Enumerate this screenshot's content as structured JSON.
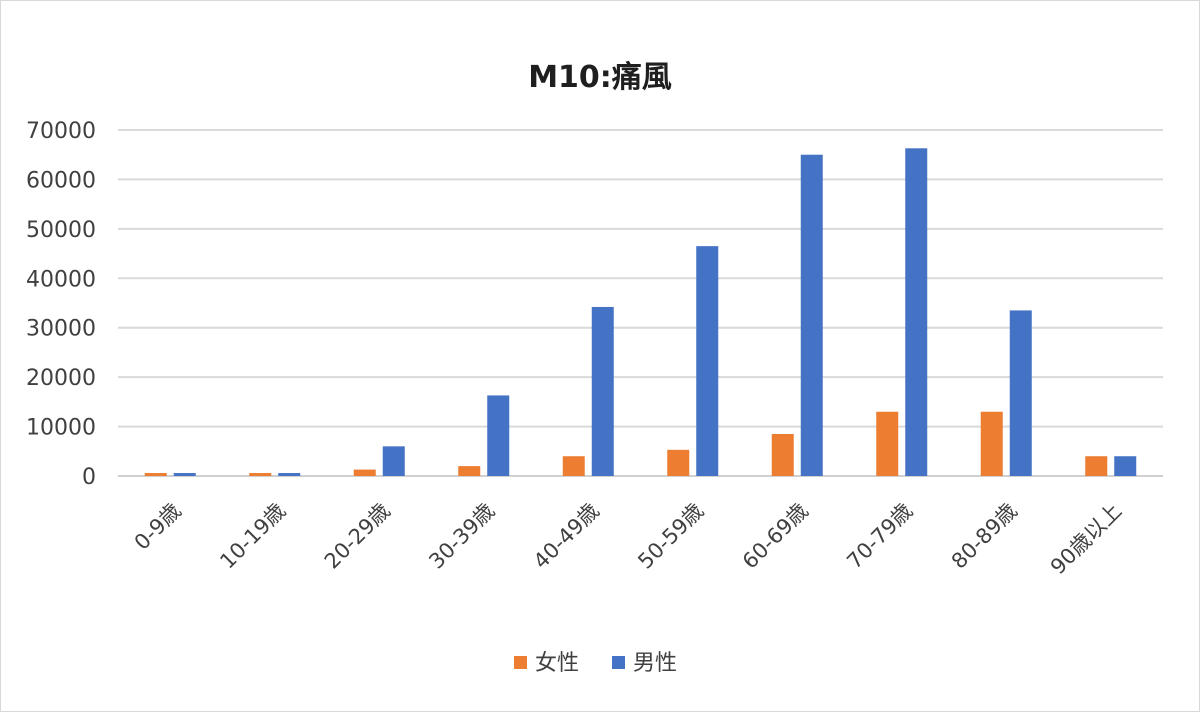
{
  "chart_data": {
    "type": "bar",
    "title": "M10:痛風",
    "xlabel": "",
    "ylabel": "",
    "ylim": [
      0,
      70000
    ],
    "yticks": [
      "0",
      "10000",
      "20000",
      "30000",
      "40000",
      "50000",
      "60000",
      "70000"
    ],
    "grid": true,
    "legend_position": "bottom",
    "categories": [
      "0-9歳",
      "10-19歳",
      "20-29歳",
      "30-39歳",
      "40-49歳",
      "50-59歳",
      "60-69歳",
      "70-79歳",
      "80-89歳",
      "90歳以上"
    ],
    "series": [
      {
        "name": "女性",
        "color": "#ED7D31",
        "values": [
          600,
          600,
          1300,
          2000,
          4000,
          5300,
          8500,
          13000,
          13000,
          4000
        ]
      },
      {
        "name": "男性",
        "color": "#4472C4",
        "values": [
          600,
          600,
          6000,
          16300,
          34200,
          46500,
          65000,
          66300,
          33500,
          4000
        ]
      }
    ]
  }
}
